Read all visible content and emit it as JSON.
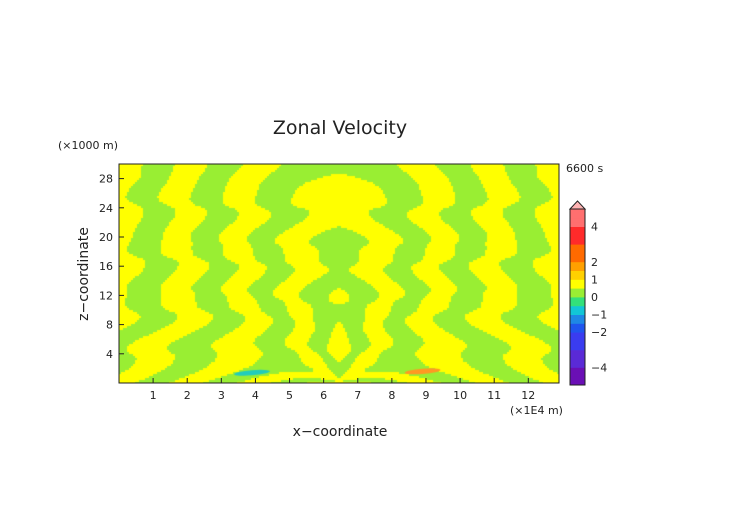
{
  "chart_data": {
    "type": "heatmap",
    "title": "Zonal Velocity",
    "xlabel": "x−coordinate",
    "ylabel": "z−coordinate",
    "x_unit": "(×1E4 m)",
    "y_unit": "(×1000 m)",
    "time_label": "6600 s",
    "xlim": [
      0,
      12.9
    ],
    "ylim": [
      0,
      30
    ],
    "x_ticks": [
      1,
      2,
      3,
      4,
      5,
      6,
      7,
      8,
      9,
      10,
      11,
      12
    ],
    "y_ticks": [
      4,
      8,
      12,
      16,
      20,
      24,
      28
    ],
    "colorbar": {
      "min": -5,
      "max": 5,
      "tick_values": [
        -4,
        -2,
        -1,
        0,
        1,
        2,
        4
      ],
      "tick_labels": [
        "−4",
        "−2",
        "−1",
        "0",
        "1",
        "2",
        "4"
      ]
    },
    "dominant_field_colors": {
      "positive_small": "#ffff00",
      "negative_small": "#99ee33"
    },
    "features": [
      {
        "kind": "negative jet",
        "x": 3.9,
        "z": 1.4,
        "color": "#22ccbb"
      },
      {
        "kind": "positive jet",
        "x": 8.9,
        "z": 1.6,
        "color": "#ff9922"
      }
    ]
  }
}
